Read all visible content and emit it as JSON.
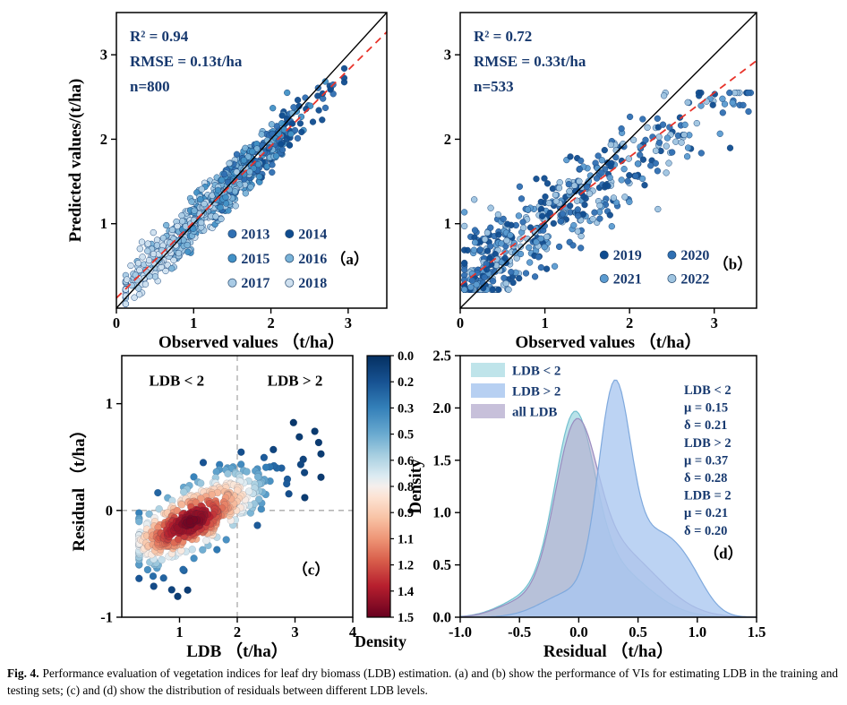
{
  "figure": {
    "caption_label": "Fig. 4.",
    "caption_text": "Performance evaluation of vegetation indices for leaf dry biomass (LDB) estimation. (a) and (b) show the performance of VIs for estimating LDB in the training and testing sets; (c) and (d) show the distribution of residuals between different LDB levels."
  },
  "colors": {
    "fit_line": "#e8332a",
    "identity_line": "#000000",
    "stats_text": "#16386e",
    "guide_dash": "#aaaaaa"
  },
  "chart_data": [
    {
      "id": "a",
      "type": "scatter",
      "panel_label": "（a）",
      "stats_lines": [
        "R² = 0.94",
        "RMSE = 0.13t/ha",
        "n=800"
      ],
      "xlabel": "Observed values （t/ha）",
      "ylabel": "Predicted values/(t/ha)",
      "xlim": [
        0,
        3.5
      ],
      "ylim": [
        0,
        3.5
      ],
      "xticks": [
        {
          "v": 0,
          "label": "0"
        },
        {
          "v": 1,
          "label": "1"
        },
        {
          "v": 2,
          "label": "2"
        },
        {
          "v": 3,
          "label": "3"
        }
      ],
      "yticks": [
        {
          "v": 1,
          "label": "1"
        },
        {
          "v": 2,
          "label": "2"
        },
        {
          "v": 3,
          "label": "3"
        }
      ],
      "identity_line": true,
      "fit_line": {
        "slope": 0.9,
        "intercept": 0.12
      },
      "legend": {
        "columns": 2,
        "entries": [
          {
            "label": "2013",
            "color": "#2f6fb2"
          },
          {
            "label": "2014",
            "color": "#0f4c8f"
          },
          {
            "label": "2015",
            "color": "#4291c6"
          },
          {
            "label": "2016",
            "color": "#7ab3d8"
          },
          {
            "label": "2017",
            "color": "#a9cbe5"
          },
          {
            "label": "2018",
            "color": "#cfe0ef"
          }
        ]
      },
      "generator": {
        "seed": 1301,
        "n": 800,
        "x_mu": 1.35,
        "x_sd": 0.62,
        "x_min": 0.12,
        "x_max": 2.95,
        "slope": 0.9,
        "intercept": 0.12,
        "noise": 0.13,
        "y_min": 0.05,
        "y_max": 3.3,
        "bias": "light-low",
        "palette_light_to_dark": [
          "#cfe0ef",
          "#a9cbe5",
          "#7ab3d8",
          "#4291c6",
          "#2f6fb2",
          "#0f4c8f"
        ]
      }
    },
    {
      "id": "b",
      "type": "scatter",
      "panel_label": "（b）",
      "stats_lines": [
        "R² = 0.72",
        "RMSE = 0.33t/ha",
        "n=533"
      ],
      "xlabel": "Observed values （t/ha）",
      "ylabel": "",
      "xlim": [
        0,
        3.5
      ],
      "ylim": [
        0,
        3.5
      ],
      "xticks": [
        {
          "v": 0,
          "label": "0"
        },
        {
          "v": 1,
          "label": "1"
        },
        {
          "v": 2,
          "label": "2"
        },
        {
          "v": 3,
          "label": "3"
        }
      ],
      "yticks": [
        {
          "v": 1,
          "label": "1"
        },
        {
          "v": 2,
          "label": "2"
        },
        {
          "v": 3,
          "label": "3"
        }
      ],
      "identity_line": true,
      "fit_line": {
        "slope": 0.76,
        "intercept": 0.27
      },
      "legend": {
        "columns": 2,
        "entries": [
          {
            "label": "2019",
            "color": "#0f4c8f"
          },
          {
            "label": "2020",
            "color": "#2f6fb2"
          },
          {
            "label": "2021",
            "color": "#5b9bd0"
          },
          {
            "label": "2022",
            "color": "#9fc4e0"
          }
        ]
      },
      "generator": {
        "seed": 1902,
        "n": 533,
        "clusters": [
          {
            "p": 0.34,
            "mu": 0.35,
            "sd": 0.24
          },
          {
            "p": 0.56,
            "mu": 1.35,
            "sd": 0.55
          }
        ],
        "tail": {
          "min": 2.2,
          "max": 3.45
        },
        "x_min": 0.05,
        "x_max": 3.45,
        "slope": 0.72,
        "intercept": 0.27,
        "noise": 0.28,
        "y_min": 0.22,
        "y_max": 2.55
      }
    },
    {
      "id": "c",
      "type": "density_scatter",
      "panel_label": "（c）",
      "xlabel": "LDB （t/ha）",
      "ylabel": "Residual （t/ha）",
      "xlim": [
        0,
        4
      ],
      "ylim": [
        -1,
        1.45
      ],
      "xticks": [
        {
          "v": 1,
          "label": "1"
        },
        {
          "v": 2,
          "label": "2"
        },
        {
          "v": 3,
          "label": "3"
        },
        {
          "v": 4,
          "label": "4"
        }
      ],
      "yticks": [
        {
          "v": -1,
          "label": "-1"
        },
        {
          "v": 0,
          "label": "0"
        },
        {
          "v": 1,
          "label": "1"
        }
      ],
      "annotations": [
        {
          "text": "LDB < 2",
          "x": 0.95,
          "y": 1.17
        },
        {
          "text": "LDB > 2",
          "x": 3.0,
          "y": 1.17
        }
      ],
      "vline": 2,
      "hline": 0,
      "colorbar": {
        "label": "Density",
        "tick_labels": [
          "0.0",
          "0.2",
          "0.3",
          "0.5",
          "0.6",
          "0.8",
          "0.9",
          "1.1",
          "1.2",
          "1.4",
          "1.5"
        ],
        "range": [
          0.0,
          1.5
        ],
        "stops": [
          [
            0,
            "#053061"
          ],
          [
            0.1,
            "#175292"
          ],
          [
            0.2,
            "#3480b9"
          ],
          [
            0.3,
            "#6aaad0"
          ],
          [
            0.38,
            "#a6cee0"
          ],
          [
            0.46,
            "#dcebf2"
          ],
          [
            0.5,
            "#f5efec"
          ],
          [
            0.54,
            "#fce3d3"
          ],
          [
            0.62,
            "#f8c3a5"
          ],
          [
            0.7,
            "#ee9576"
          ],
          [
            0.78,
            "#d9604c"
          ],
          [
            0.88,
            "#b71f2e"
          ],
          [
            1,
            "#67001f"
          ]
        ]
      },
      "generator": {
        "seed": 77,
        "n": 430,
        "x_mu": 1.3,
        "x_sd": 0.62,
        "x_min": 0.3,
        "x_max": 3.45,
        "slope": 0.27,
        "y0": -0.07,
        "noise": 0.165,
        "tail_n": 14,
        "tail_x": [
          2.35,
          3.42
        ],
        "tail_lift": 0.12,
        "spur_n": 8,
        "kernel_x": 0.32,
        "kernel_y": 0.13
      }
    },
    {
      "id": "d",
      "type": "kde",
      "panel_label": "（d）",
      "xlabel": "Residual （t/ha）",
      "ylabel": "Density",
      "xlim": [
        -1.0,
        1.5
      ],
      "ylim": [
        0,
        2.5
      ],
      "xticks": [
        {
          "v": -1,
          "label": "-1.0"
        },
        {
          "v": -0.5,
          "label": "-0.5"
        },
        {
          "v": 0,
          "label": "0.0"
        },
        {
          "v": 0.5,
          "label": "0.5"
        },
        {
          "v": 1,
          "label": "1.0"
        },
        {
          "v": 1.5,
          "label": "1.5"
        }
      ],
      "yticks": [
        {
          "v": 0,
          "label": "0.0"
        },
        {
          "v": 0.5,
          "label": "0.5"
        },
        {
          "v": 1,
          "label": "1.0"
        },
        {
          "v": 1.5,
          "label": "1.5"
        },
        {
          "v": 2,
          "label": "2.0"
        },
        {
          "v": 2.5,
          "label": "2.5"
        }
      ],
      "legend_entries": [
        {
          "label": "LDB < 2",
          "fill": "#bfe4ea"
        },
        {
          "label": "LDB > 2",
          "fill": "#b7d0f2"
        },
        {
          "label": "all LDB",
          "fill": "#c7c0da"
        }
      ],
      "stats_lines": [
        "LDB < 2",
        "μ = 0.15",
        "δ = 0.21",
        "LDB > 2",
        "μ = 0.37",
        "δ = 0.28",
        "LDB = 2",
        "μ = 0.21",
        "δ = 0.20"
      ],
      "curves": [
        {
          "id": "ldb-lt-2",
          "name": "LDB < 2",
          "fill": "#a8dbe4",
          "opacity": 0.8,
          "stroke": "#74c0cf",
          "peak": 1.97,
          "components": [
            {
              "mu": -0.04,
              "sd": 0.165,
              "w": 1
            },
            {
              "mu": 0.25,
              "sd": 0.32,
              "w": 0.3
            },
            {
              "mu": -0.45,
              "sd": 0.22,
              "w": 0.1
            }
          ]
        },
        {
          "id": "all-ldb",
          "name": "all LDB",
          "fill": "#b5abce",
          "opacity": 0.6,
          "stroke": "#998cc0",
          "peak": 1.9,
          "components": [
            {
              "mu": -0.03,
              "sd": 0.175,
              "w": 1
            },
            {
              "mu": 0.32,
              "sd": 0.34,
              "w": 0.42
            },
            {
              "mu": -0.5,
              "sd": 0.2,
              "w": 0.08
            }
          ]
        },
        {
          "id": "ldb-gt-2",
          "name": "LDB > 2",
          "fill": "#a9c7f0",
          "opacity": 0.78,
          "stroke": "#7fa9dd",
          "peak": 2.27,
          "components": [
            {
              "mu": 0.3,
              "sd": 0.135,
              "w": 1
            },
            {
              "mu": 0.66,
              "sd": 0.22,
              "w": 0.38
            },
            {
              "mu": 0.95,
              "sd": 0.15,
              "w": 0.1
            },
            {
              "mu": -0.05,
              "sd": 0.25,
              "w": 0.12
            }
          ]
        }
      ]
    }
  ]
}
